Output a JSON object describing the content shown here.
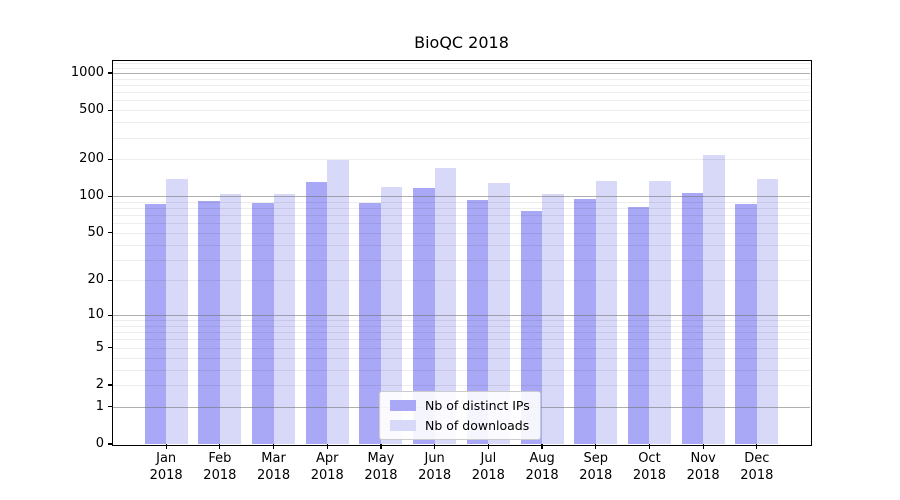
{
  "chart_data": {
    "type": "bar",
    "title": "BioQC 2018",
    "categories": [
      "Jan",
      "Feb",
      "Mar",
      "Apr",
      "May",
      "Jun",
      "Jul",
      "Aug",
      "Sep",
      "Oct",
      "Nov",
      "Dec"
    ],
    "category_year": "2018",
    "series": [
      {
        "name": "Nb of distinct IPs",
        "color": "#a8a8f6",
        "values": [
          87,
          91,
          88,
          130,
          88,
          116,
          93,
          75,
          94,
          81,
          107,
          87
        ]
      },
      {
        "name": "Nb of downloads",
        "color": "#d8d8f8",
        "values": [
          137,
          104,
          104,
          196,
          118,
          171,
          128,
          105,
          132,
          134,
          216,
          139
        ]
      }
    ],
    "xlabel": "",
    "ylabel": "",
    "y_scale": "log1p",
    "y_ticks": [
      0,
      1,
      2,
      5,
      10,
      20,
      50,
      100,
      200,
      500,
      1000
    ],
    "y_major_gridlines": [
      1,
      10,
      100,
      1000
    ],
    "ylim": [
      0,
      1250
    ],
    "grid": {
      "major": true,
      "minor": true
    },
    "legend_position": "lower center"
  }
}
